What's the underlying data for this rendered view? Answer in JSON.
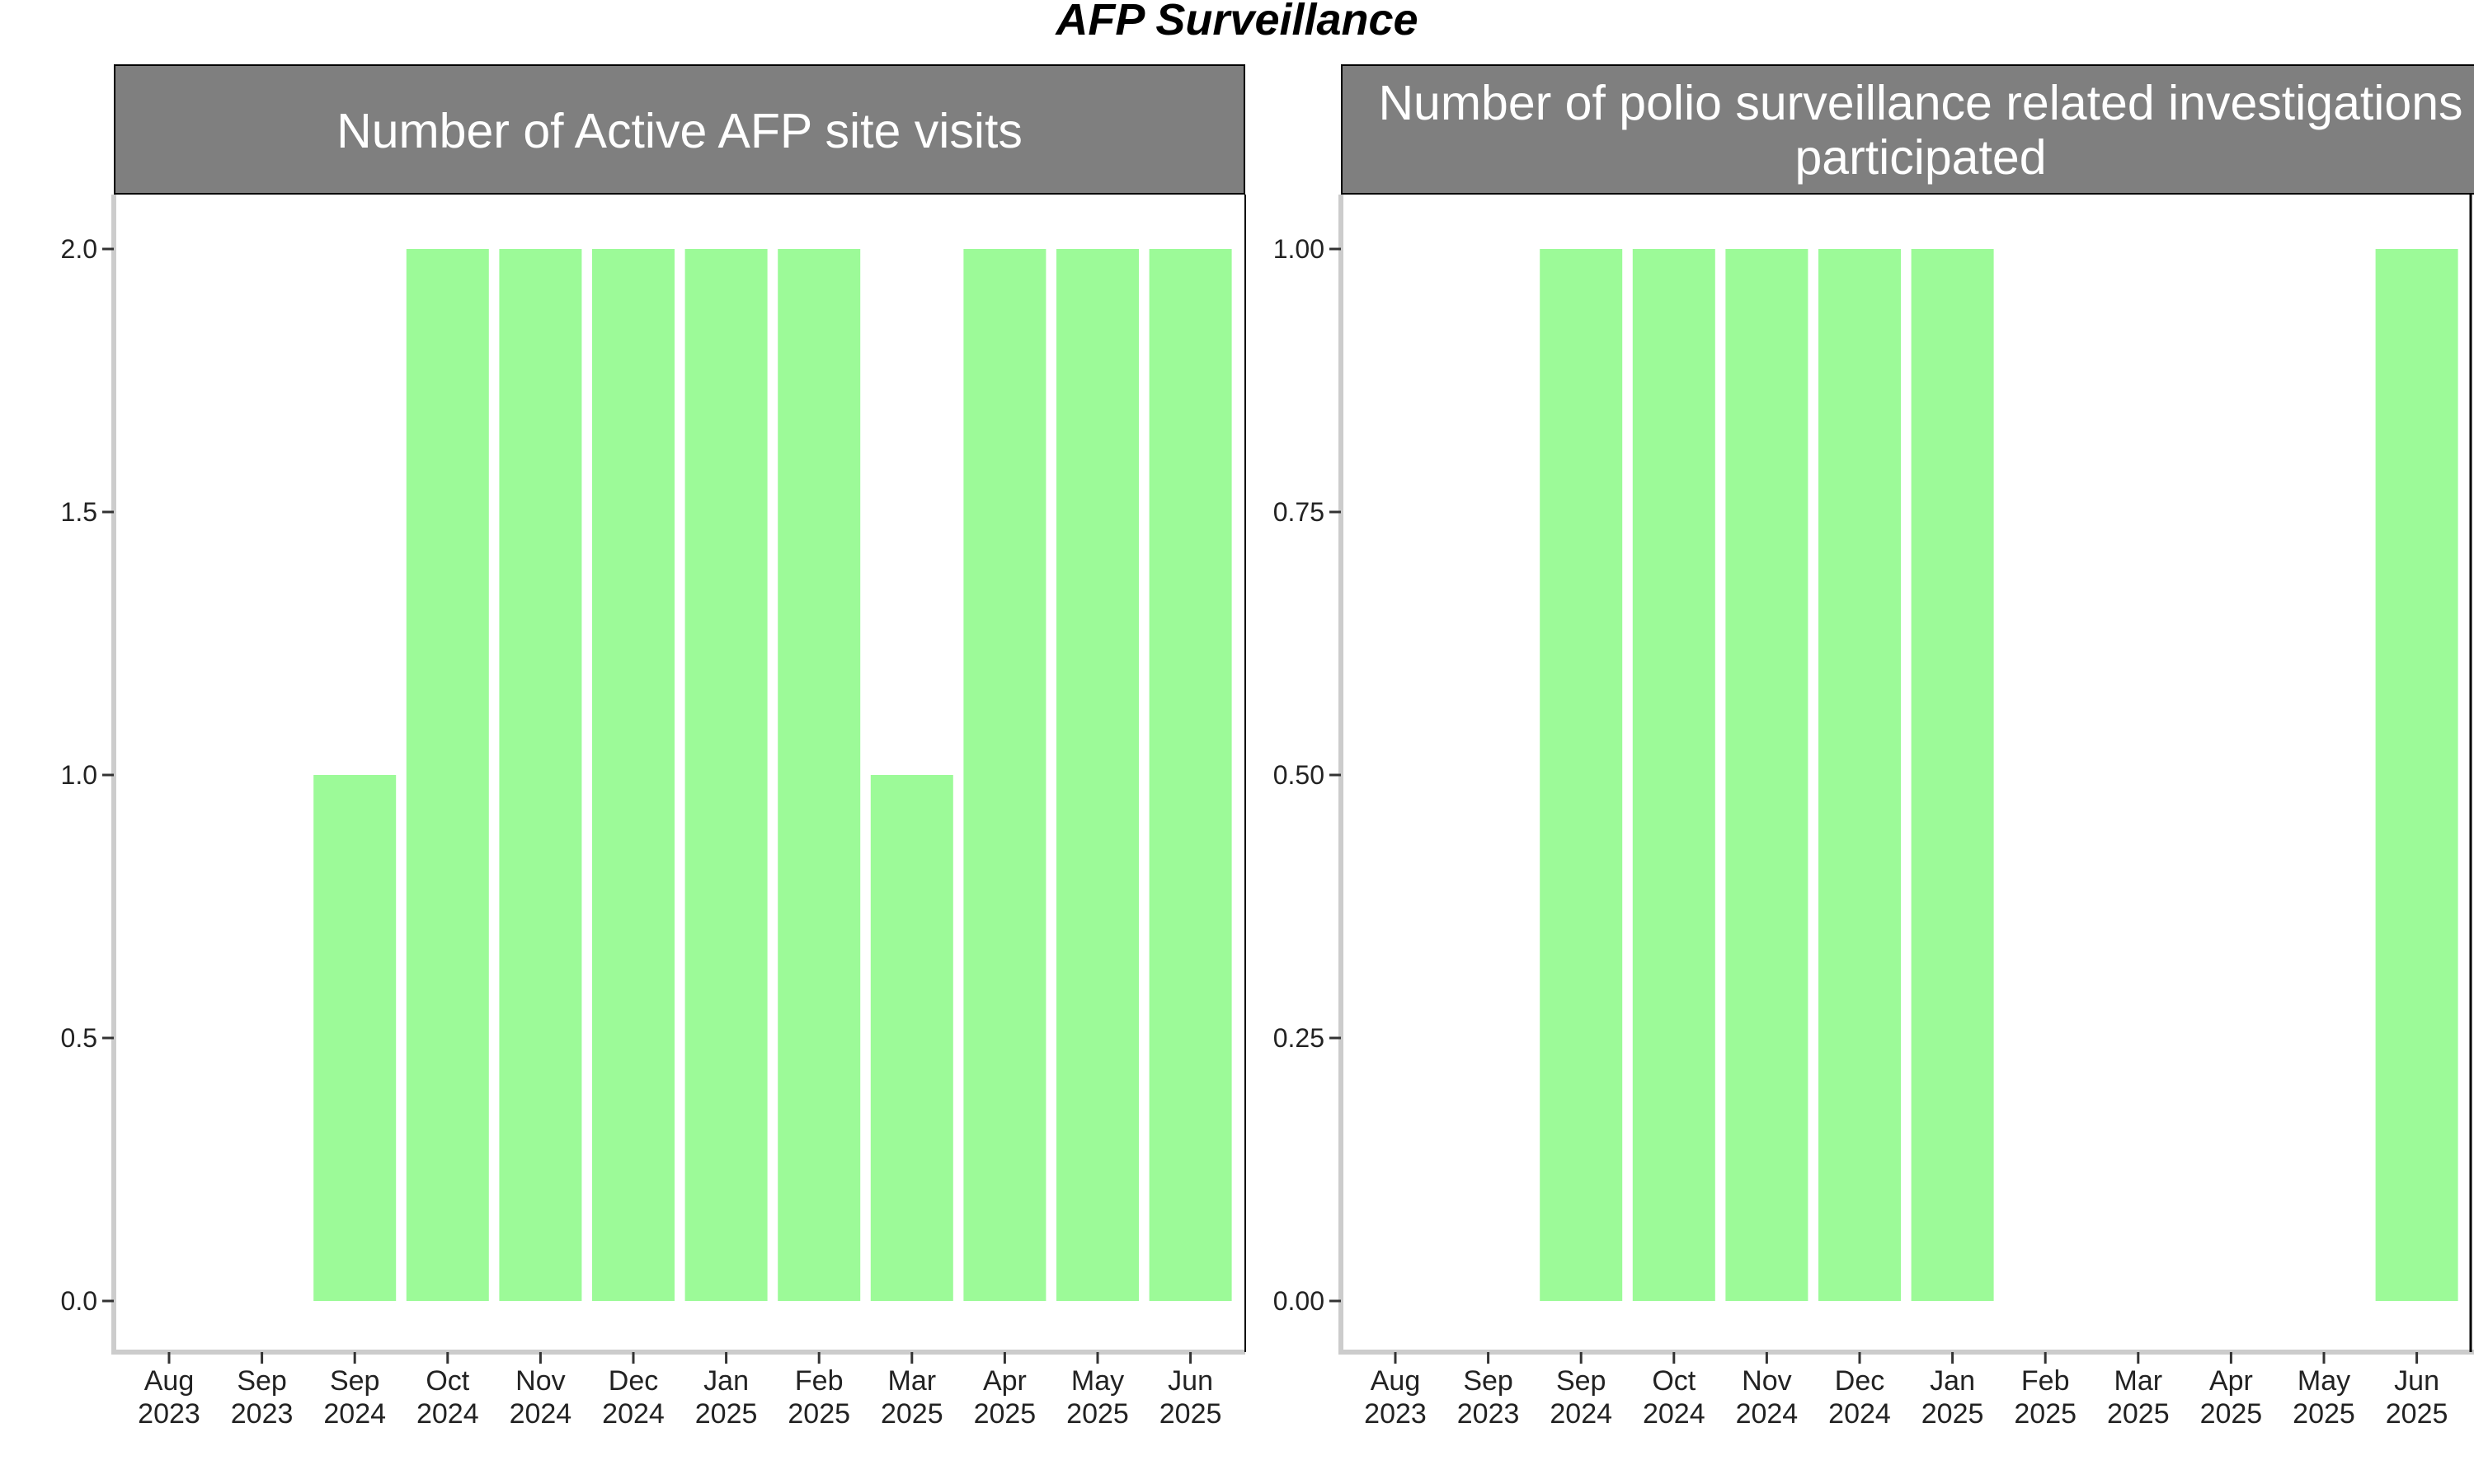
{
  "title": "AFP Surveillance",
  "chart_data": [
    {
      "type": "bar",
      "title": "Number of Active AFP site visits",
      "categories": [
        "Aug\n2023",
        "Sep\n2023",
        "Sep\n2024",
        "Oct\n2024",
        "Nov\n2024",
        "Dec\n2024",
        "Jan\n2025",
        "Feb\n2025",
        "Mar\n2025",
        "Apr\n2025",
        "May\n2025",
        "Jun\n2025"
      ],
      "values": [
        0,
        0,
        1,
        2,
        2,
        2,
        2,
        2,
        1,
        2,
        2,
        2
      ],
      "yticks": [
        "0.0",
        "0.5",
        "1.0",
        "1.5",
        "2.0"
      ],
      "ylim": [
        0,
        2
      ],
      "xlabel": "",
      "ylabel": "",
      "bar_color": "#9cfa98",
      "strip_color": "#7f7f7f",
      "grid": false
    },
    {
      "type": "bar",
      "title": "Number of polio surveillance related investigations participated",
      "title_lines": [
        "Number of polio surveillance related investigations",
        "participated"
      ],
      "categories": [
        "Aug\n2023",
        "Sep\n2023",
        "Sep\n2024",
        "Oct\n2024",
        "Nov\n2024",
        "Dec\n2024",
        "Jan\n2025",
        "Feb\n2025",
        "Mar\n2025",
        "Apr\n2025",
        "May\n2025",
        "Jun\n2025"
      ],
      "values": [
        0,
        0,
        1,
        1,
        1,
        1,
        1,
        0,
        0,
        0,
        0,
        1
      ],
      "yticks": [
        "0.00",
        "0.25",
        "0.50",
        "0.75",
        "1.00"
      ],
      "ylim": [
        0,
        1
      ],
      "xlabel": "",
      "ylabel": "",
      "bar_color": "#9cfa98",
      "strip_color": "#7f7f7f",
      "grid": false
    }
  ]
}
